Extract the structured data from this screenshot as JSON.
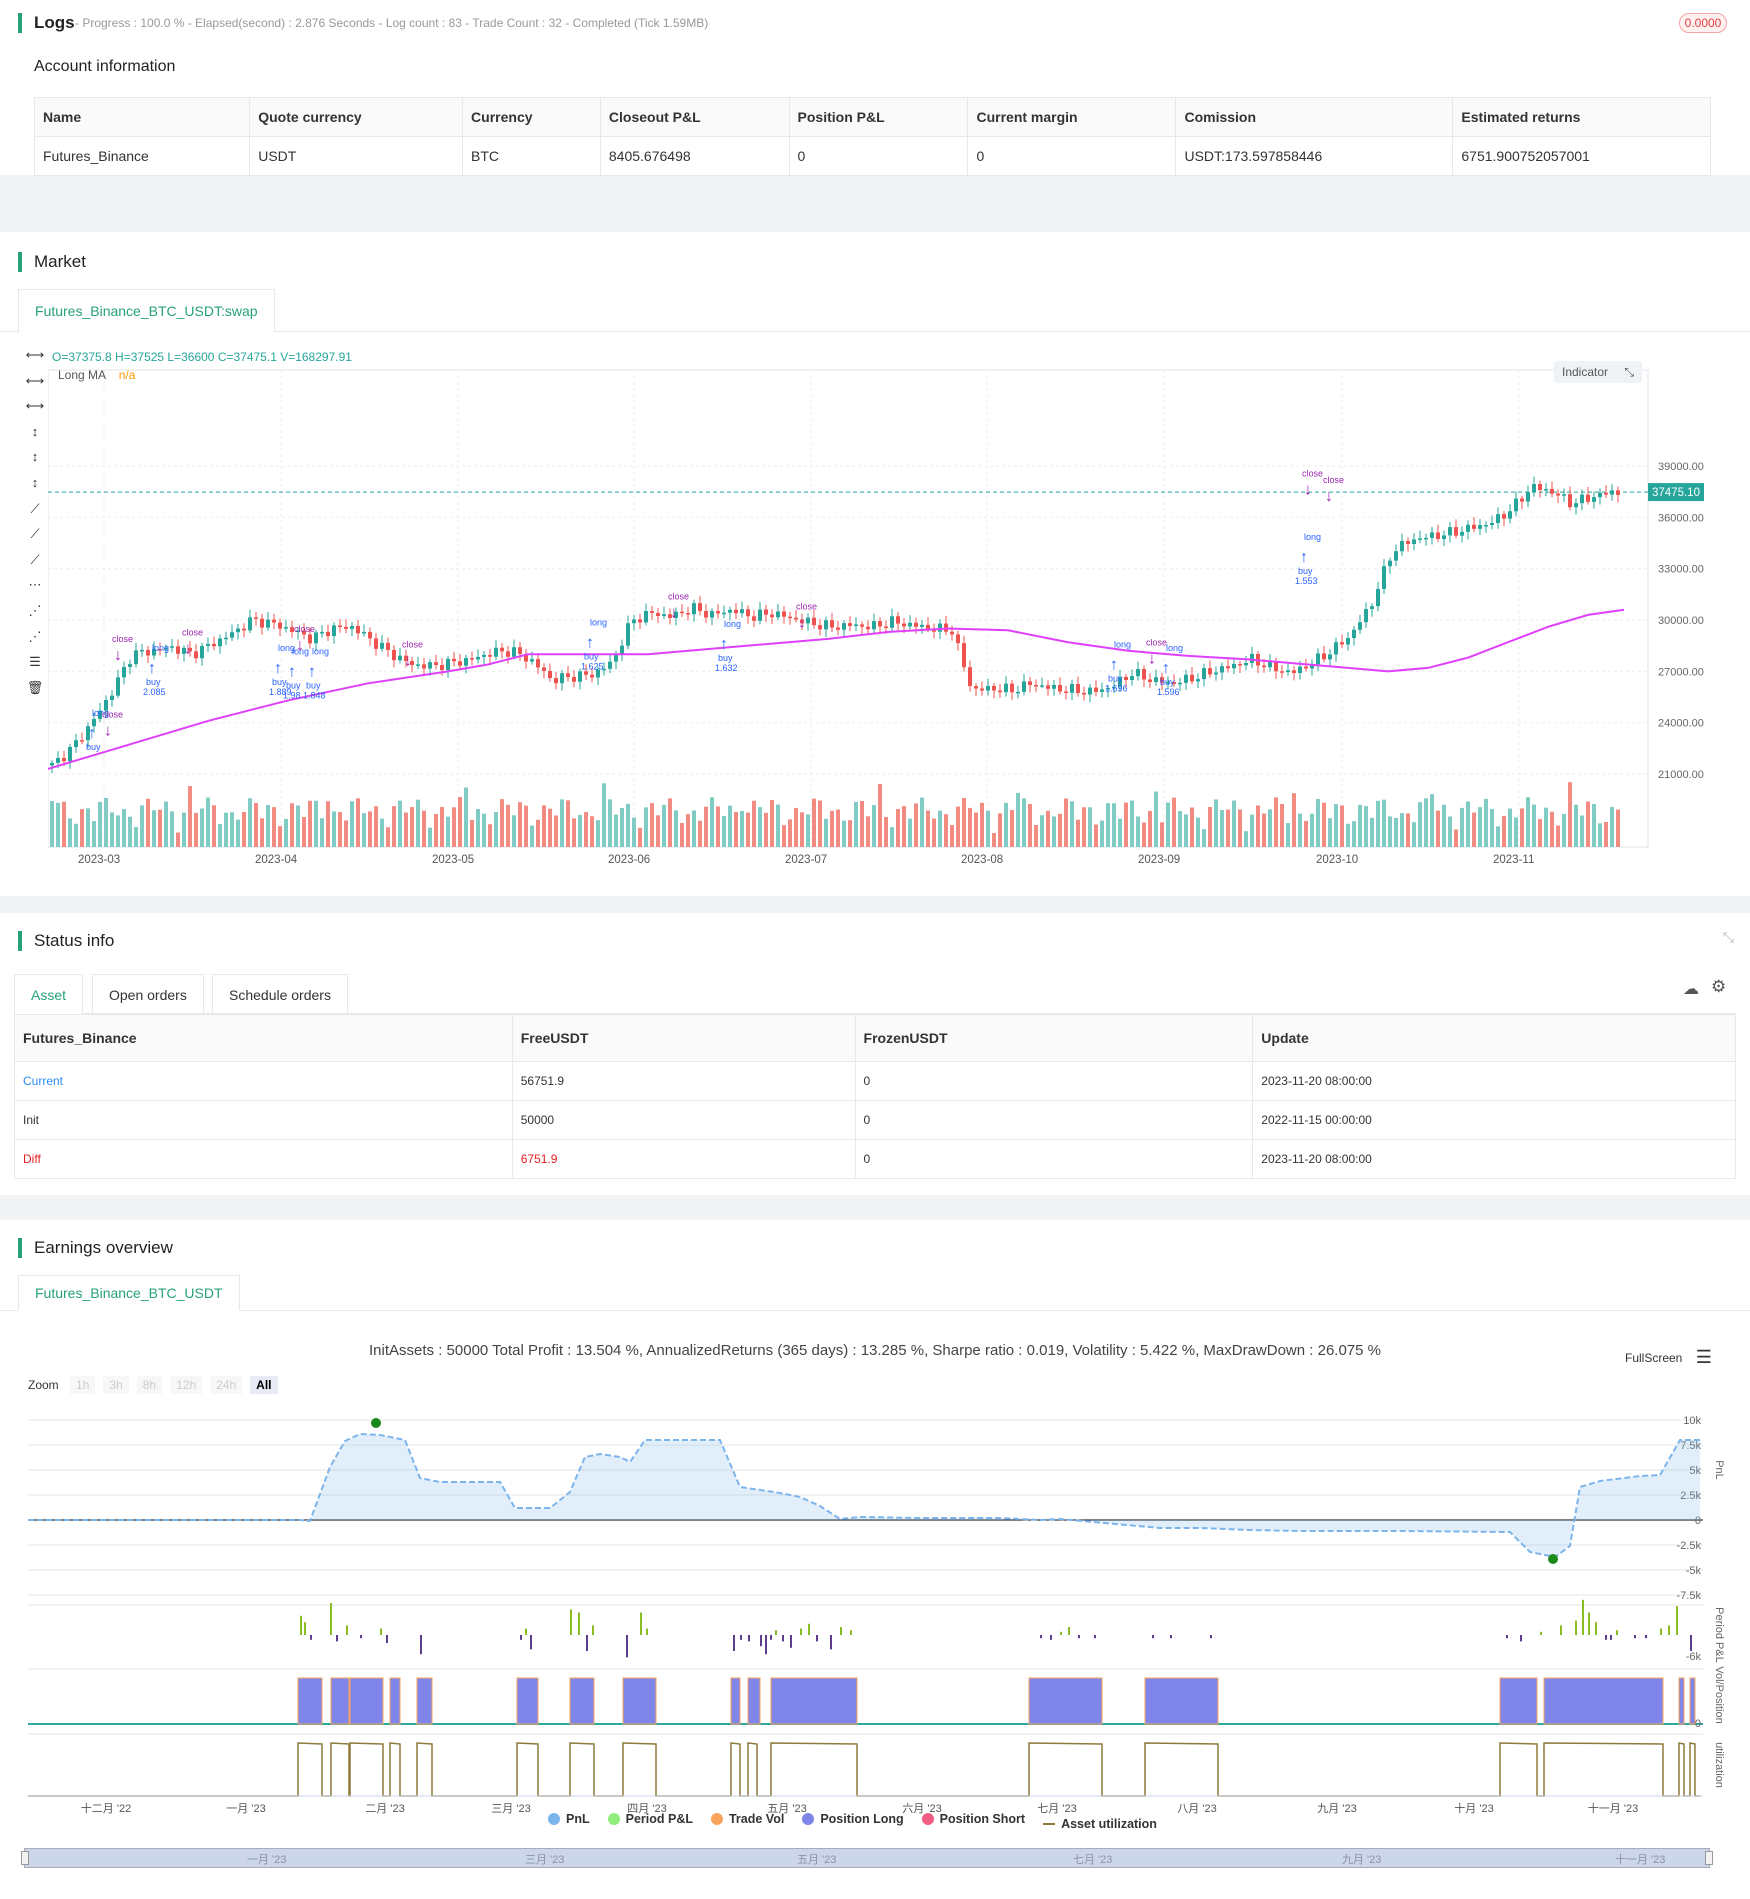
{
  "logs": {
    "title": "Logs",
    "status": "- Progress : 100.0 % - Elapsed(second) : 2.876  Seconds - Log count : 83 - Trade Count : 32 - Completed (Tick 1.59MB)",
    "badge": "0.0000"
  },
  "account": {
    "title": "Account information",
    "headers": [
      "Name",
      "Quote currency",
      "Currency",
      "Closeout P&L",
      "Position P&L",
      "Current margin",
      "Comission",
      "Estimated returns"
    ],
    "row": [
      "Futures_Binance",
      "USDT",
      "BTC",
      "8405.676498",
      "0",
      "0",
      "USDT:173.597858446",
      "6751.900752057001"
    ]
  },
  "market": {
    "title": "Market",
    "tab": "Futures_Binance_BTC_USDT:swap",
    "ohlc": "O=37375.8 H=37525 L=36600 C=37475.1 V=168297.91",
    "ma_label": "Long MA",
    "ma_value": "n/a",
    "indicator_btn": "Indicator",
    "price_tag": "37475.10",
    "y_ticks": [
      "39000.00",
      "36000.00",
      "33000.00",
      "30000.00",
      "27000.00",
      "24000.00",
      "21000.00"
    ],
    "x_ticks": [
      "2023-03",
      "2023-04",
      "2023-05",
      "2023-06",
      "2023-07",
      "2023-08",
      "2023-09",
      "2023-10",
      "2023-11"
    ],
    "markers": {
      "buy": "buy",
      "close": "close",
      "long": "long",
      "vals": [
        "2.085",
        "1.889",
        "1.98",
        "1.848",
        "1.625",
        "1.632",
        "1.696",
        "1.596",
        "1.553"
      ]
    },
    "colors": {
      "up": "#26a69a",
      "down": "#ef5350",
      "ma": "#e040fb",
      "buy_marker": "#2962ff",
      "close_marker": "#9c27b0"
    }
  },
  "status": {
    "title": "Status info",
    "tabs": [
      "Asset",
      "Open orders",
      "Schedule orders"
    ],
    "headers": [
      "Futures_Binance",
      "FreeUSDT",
      "FrozenUSDT",
      "Update"
    ],
    "rows": [
      [
        "Current",
        "56751.9",
        "0",
        "2023-11-20 08:00:00"
      ],
      [
        "Init",
        "50000",
        "0",
        "2022-11-15 00:00:00"
      ],
      [
        "Diff",
        "6751.9",
        "0",
        "2023-11-20 08:00:00"
      ]
    ]
  },
  "earnings": {
    "title": "Earnings overview",
    "tab": "Futures_Binance_BTC_USDT",
    "summary": "InitAssets : 50000 Total Profit : 13.504 %, AnnualizedReturns (365 days) : 13.285 %, Sharpe ratio : 0.019, Volatility : 5.422 %, MaxDrawDown : 26.075 %",
    "fullscreen": "FullScreen",
    "zoom_label": "Zoom",
    "zoom_opts": [
      "1h",
      "3h",
      "8h",
      "12h",
      "24h",
      "All"
    ],
    "pnl_ticks": [
      "10k",
      "7.5k",
      "5k",
      "2.5k",
      "0",
      "-2.5k",
      "-5k",
      "-7.5k"
    ],
    "period_tick": "-6k",
    "vol_tick": "0",
    "axis_titles": [
      "PnL",
      "Period P&L",
      "Vol/Position",
      "utilization"
    ],
    "x_ticks": [
      "十二月 '22",
      "一月 '23",
      "二月 '23",
      "三月 '23",
      "四月 '23",
      "五月 '23",
      "六月 '23",
      "七月 '23",
      "八月 '23",
      "九月 '23",
      "十月 '23",
      "十一月 '23"
    ],
    "nav_ticks": [
      "一月 '23",
      "三月 '23",
      "五月 '23",
      "七月 '23",
      "九月 '23",
      "十一月 '23"
    ],
    "legend": [
      {
        "label": "PnL",
        "color": "#7cb5ec"
      },
      {
        "label": "Period P&L",
        "color": "#90ed7d"
      },
      {
        "label": "Trade Vol",
        "color": "#f7a35c"
      },
      {
        "label": "Position Long",
        "color": "#8085e9"
      },
      {
        "label": "Position Short",
        "color": "#f15c80"
      },
      {
        "label": "Asset utilization",
        "color": "#8d7a3c"
      }
    ]
  }
}
